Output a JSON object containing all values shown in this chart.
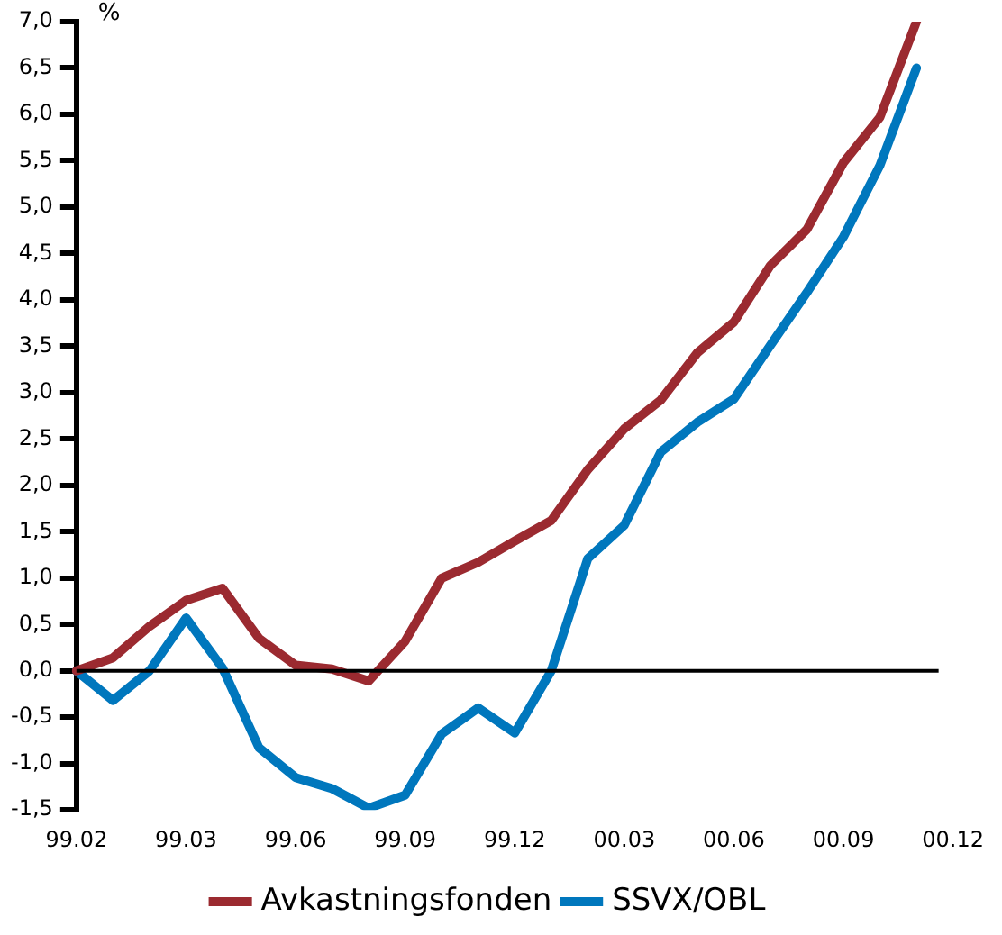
{
  "chart_data": {
    "type": "line",
    "ylabel": "%",
    "categories": [
      "99.02",
      null,
      null,
      "99.03",
      null,
      null,
      "99.06",
      null,
      null,
      "99.09",
      null,
      null,
      "99.12",
      null,
      null,
      "00.03",
      null,
      null,
      "00.06",
      null,
      null,
      "00.09",
      null,
      null,
      "00.12"
    ],
    "series": [
      {
        "name": "Avkastningsfonden",
        "color": "#9b2a30",
        "values": [
          0.0,
          0.14,
          0.48,
          0.76,
          0.89,
          0.35,
          0.06,
          0.02,
          -0.11,
          0.32,
          1.0,
          1.17,
          1.4,
          1.62,
          2.17,
          2.61,
          2.92,
          3.43,
          3.76,
          4.37,
          4.76,
          5.48,
          5.97,
          7.0,
          null
        ]
      },
      {
        "name": "SSVX/OBL",
        "color": "#0077bd",
        "values": [
          0.0,
          -0.32,
          0.0,
          0.57,
          0.03,
          -0.83,
          -1.15,
          -1.27,
          -1.48,
          -1.34,
          -0.68,
          -0.4,
          -0.67,
          0.0,
          1.21,
          1.57,
          2.36,
          2.68,
          2.93,
          3.51,
          4.08,
          4.68,
          5.45,
          6.5,
          null
        ]
      }
    ],
    "ylim": [
      -1.5,
      7.0
    ],
    "yticks": [
      {
        "value": -1.5,
        "label": "-1,5"
      },
      {
        "value": -1.0,
        "label": "-1,0"
      },
      {
        "value": -0.5,
        "label": "-0,5"
      },
      {
        "value": 0,
        "label": "0,0"
      },
      {
        "value": 0.5,
        "label": "0,5"
      },
      {
        "value": 1.0,
        "label": "1,0"
      },
      {
        "value": 1.5,
        "label": "1,5"
      },
      {
        "value": 2.0,
        "label": "2,0"
      },
      {
        "value": 2.5,
        "label": "2,5"
      },
      {
        "value": 3.0,
        "label": "3,0"
      },
      {
        "value": 3.5,
        "label": "3,5"
      },
      {
        "value": 4.0,
        "label": "4,0"
      },
      {
        "value": 4.5,
        "label": "4,5"
      },
      {
        "value": 5.0,
        "label": "5,0"
      },
      {
        "value": 5.5,
        "label": "5,5"
      },
      {
        "value": 6.0,
        "label": "6,0"
      },
      {
        "value": 6.5,
        "label": "6,5"
      },
      {
        "value": 7.0,
        "label": "7,0"
      }
    ],
    "ref_lines": [
      {
        "axis": "y",
        "value": 0,
        "color": "#000000"
      }
    ],
    "grid": false,
    "legend": "bottom",
    "marker": "none",
    "line_style": "solid"
  }
}
